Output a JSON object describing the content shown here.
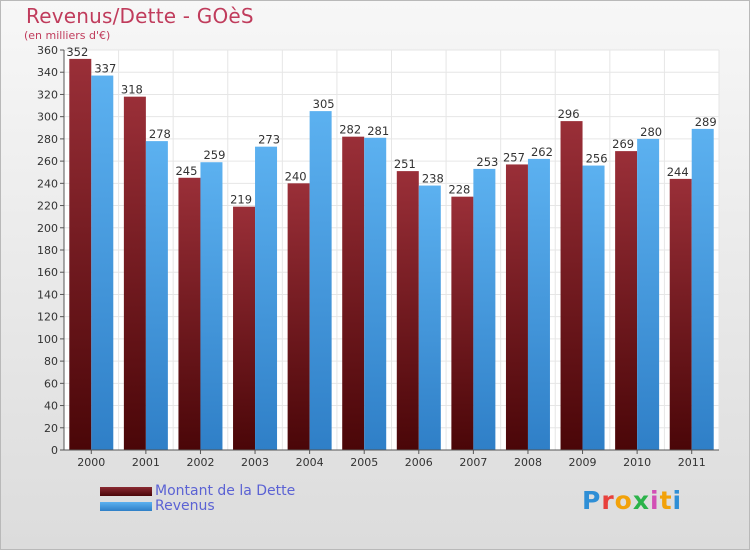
{
  "title": "Revenus/Dette - GOèS",
  "subtitle": "(en milliers d'€)",
  "logo": {
    "text": "Proxiti",
    "colors": [
      "#2f8fd6",
      "#e8413c",
      "#f2a20a",
      "#2bb34a",
      "#d24fb5",
      "#f2a20a",
      "#2f8fd6"
    ]
  },
  "chart_data": {
    "type": "bar",
    "categories": [
      "2000",
      "2001",
      "2002",
      "2003",
      "2004",
      "2005",
      "2006",
      "2007",
      "2008",
      "2009",
      "2010",
      "2011"
    ],
    "series": [
      {
        "name": "Montant de la Dette",
        "color": "#7a1c24",
        "values": [
          352,
          318,
          245,
          219,
          240,
          282,
          251,
          228,
          257,
          296,
          269,
          244
        ]
      },
      {
        "name": "Revenus",
        "color": "#4aa3e6",
        "values": [
          337,
          278,
          259,
          273,
          305,
          281,
          238,
          253,
          262,
          256,
          280,
          289
        ]
      }
    ],
    "ylim": [
      0,
      360
    ],
    "yticks": [
      0,
      20,
      40,
      60,
      80,
      100,
      120,
      140,
      160,
      180,
      200,
      220,
      240,
      260,
      280,
      300,
      320,
      340,
      360
    ],
    "grid": true,
    "legend": "bottom-left"
  }
}
